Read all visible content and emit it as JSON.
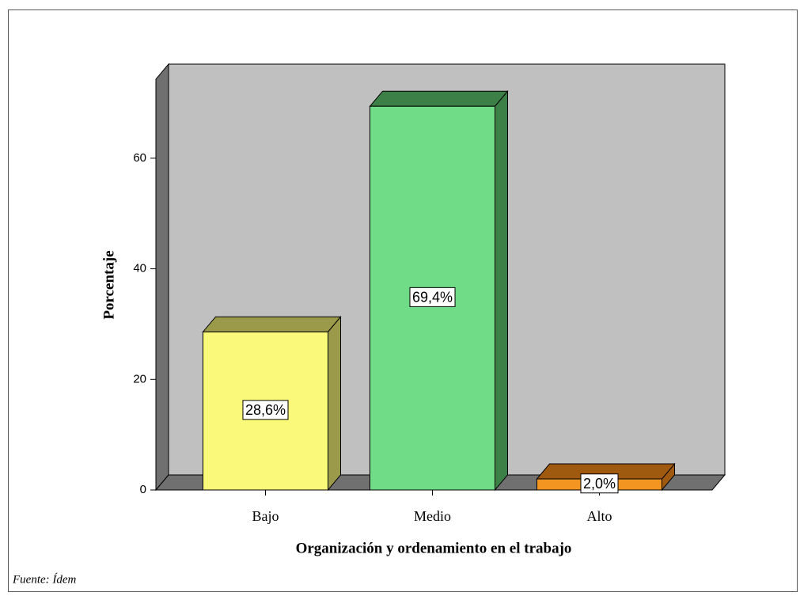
{
  "chart_data": {
    "type": "bar3d",
    "categories": [
      "Bajo",
      "Medio",
      "Alto"
    ],
    "values": [
      28.6,
      69.4,
      2.0
    ],
    "value_labels": [
      "28,6%",
      "69,4%",
      "2,0%"
    ],
    "colors": [
      "#fbf97a",
      "#70dc88",
      "#f39521"
    ],
    "side_colors": [
      "#9a9a4a",
      "#3c8048",
      "#a05a10"
    ],
    "y_label": "Porcentaje",
    "x_label": "Organización y ordenamiento en el trabajo",
    "footnote": "Fuente: Ídem",
    "ylim": [
      0,
      74.3
    ],
    "yticks": [
      0,
      20,
      40,
      60
    ],
    "grid": false
  }
}
